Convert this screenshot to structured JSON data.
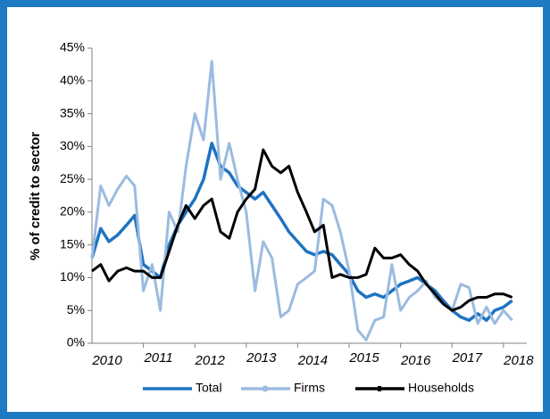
{
  "chart_data": {
    "type": "line",
    "y_label": "% of credit to sector",
    "x": [
      2010,
      2010.17,
      2010.33,
      2010.5,
      2010.67,
      2010.83,
      2011,
      2011.17,
      2011.33,
      2011.5,
      2011.67,
      2011.83,
      2012,
      2012.17,
      2012.33,
      2012.5,
      2012.67,
      2012.83,
      2013,
      2013.17,
      2013.33,
      2013.5,
      2013.67,
      2013.83,
      2014,
      2014.17,
      2014.33,
      2014.5,
      2014.67,
      2014.83,
      2015,
      2015.17,
      2015.33,
      2015.5,
      2015.67,
      2015.83,
      2016,
      2016.17,
      2016.33,
      2016.5,
      2016.67,
      2016.83,
      2017,
      2017.17,
      2017.33,
      2017.5,
      2017.67,
      2017.83,
      2018,
      2018.17
    ],
    "series": [
      {
        "name": "Total",
        "color": "#1f73c2",
        "values": [
          13,
          17.5,
          15.5,
          16.5,
          18,
          19.5,
          12,
          11,
          10,
          15,
          18,
          20,
          22,
          25,
          30.5,
          27,
          26,
          24,
          23,
          22,
          23,
          21,
          19,
          17,
          15.5,
          14,
          13.5,
          14,
          13.5,
          12,
          10.5,
          8,
          7,
          7.5,
          7,
          8,
          9,
          9.5,
          10,
          9,
          8,
          6.5,
          5,
          4,
          3.5,
          4.5,
          3.5,
          5,
          5.5,
          6.5
        ]
      },
      {
        "name": "Firms",
        "color": "#9bbbe0",
        "values": [
          13,
          24,
          21,
          23.5,
          25.5,
          24,
          8,
          12,
          5,
          20,
          17,
          27,
          35,
          31,
          43,
          25,
          30.5,
          25,
          20,
          8,
          15.5,
          13,
          4,
          5,
          9,
          10,
          11,
          22,
          21,
          17,
          11,
          2,
          0.5,
          3.5,
          4,
          12,
          5,
          7,
          8,
          9.5,
          7,
          6,
          5,
          9,
          8.5,
          3,
          5.5,
          3,
          5,
          3.5
        ]
      },
      {
        "name": "Households",
        "color": "#000000",
        "values": [
          11,
          12,
          9.5,
          11,
          11.5,
          11,
          11,
          10,
          10,
          14,
          18,
          21,
          19,
          21,
          22,
          17,
          16,
          20,
          22,
          23.5,
          29.5,
          27,
          26,
          27,
          23,
          20,
          17,
          18,
          10,
          10.5,
          10,
          10,
          10.5,
          14.5,
          13,
          13,
          13.5,
          12,
          11,
          9,
          7.5,
          6,
          5,
          5.5,
          6.5,
          7,
          7,
          7.5,
          7.5,
          7
        ]
      }
    ],
    "xlim": [
      2010,
      2018.28
    ],
    "xticks": [
      2010,
      2011,
      2012,
      2013,
      2014,
      2015,
      2016,
      2017,
      2018
    ],
    "ylim": [
      0,
      45
    ],
    "yticks": [
      {
        "value": 0,
        "label": "0%"
      },
      {
        "value": 5,
        "label": "5%"
      },
      {
        "value": 10,
        "label": "10%"
      },
      {
        "value": 15,
        "label": "15%"
      },
      {
        "value": 20,
        "label": "20%"
      },
      {
        "value": 25,
        "label": "25%"
      },
      {
        "value": 30,
        "label": "30%"
      },
      {
        "value": 35,
        "label": "35%"
      },
      {
        "value": 40,
        "label": "40%"
      },
      {
        "value": 45,
        "label": "45%"
      }
    ],
    "legend": "bottom"
  }
}
